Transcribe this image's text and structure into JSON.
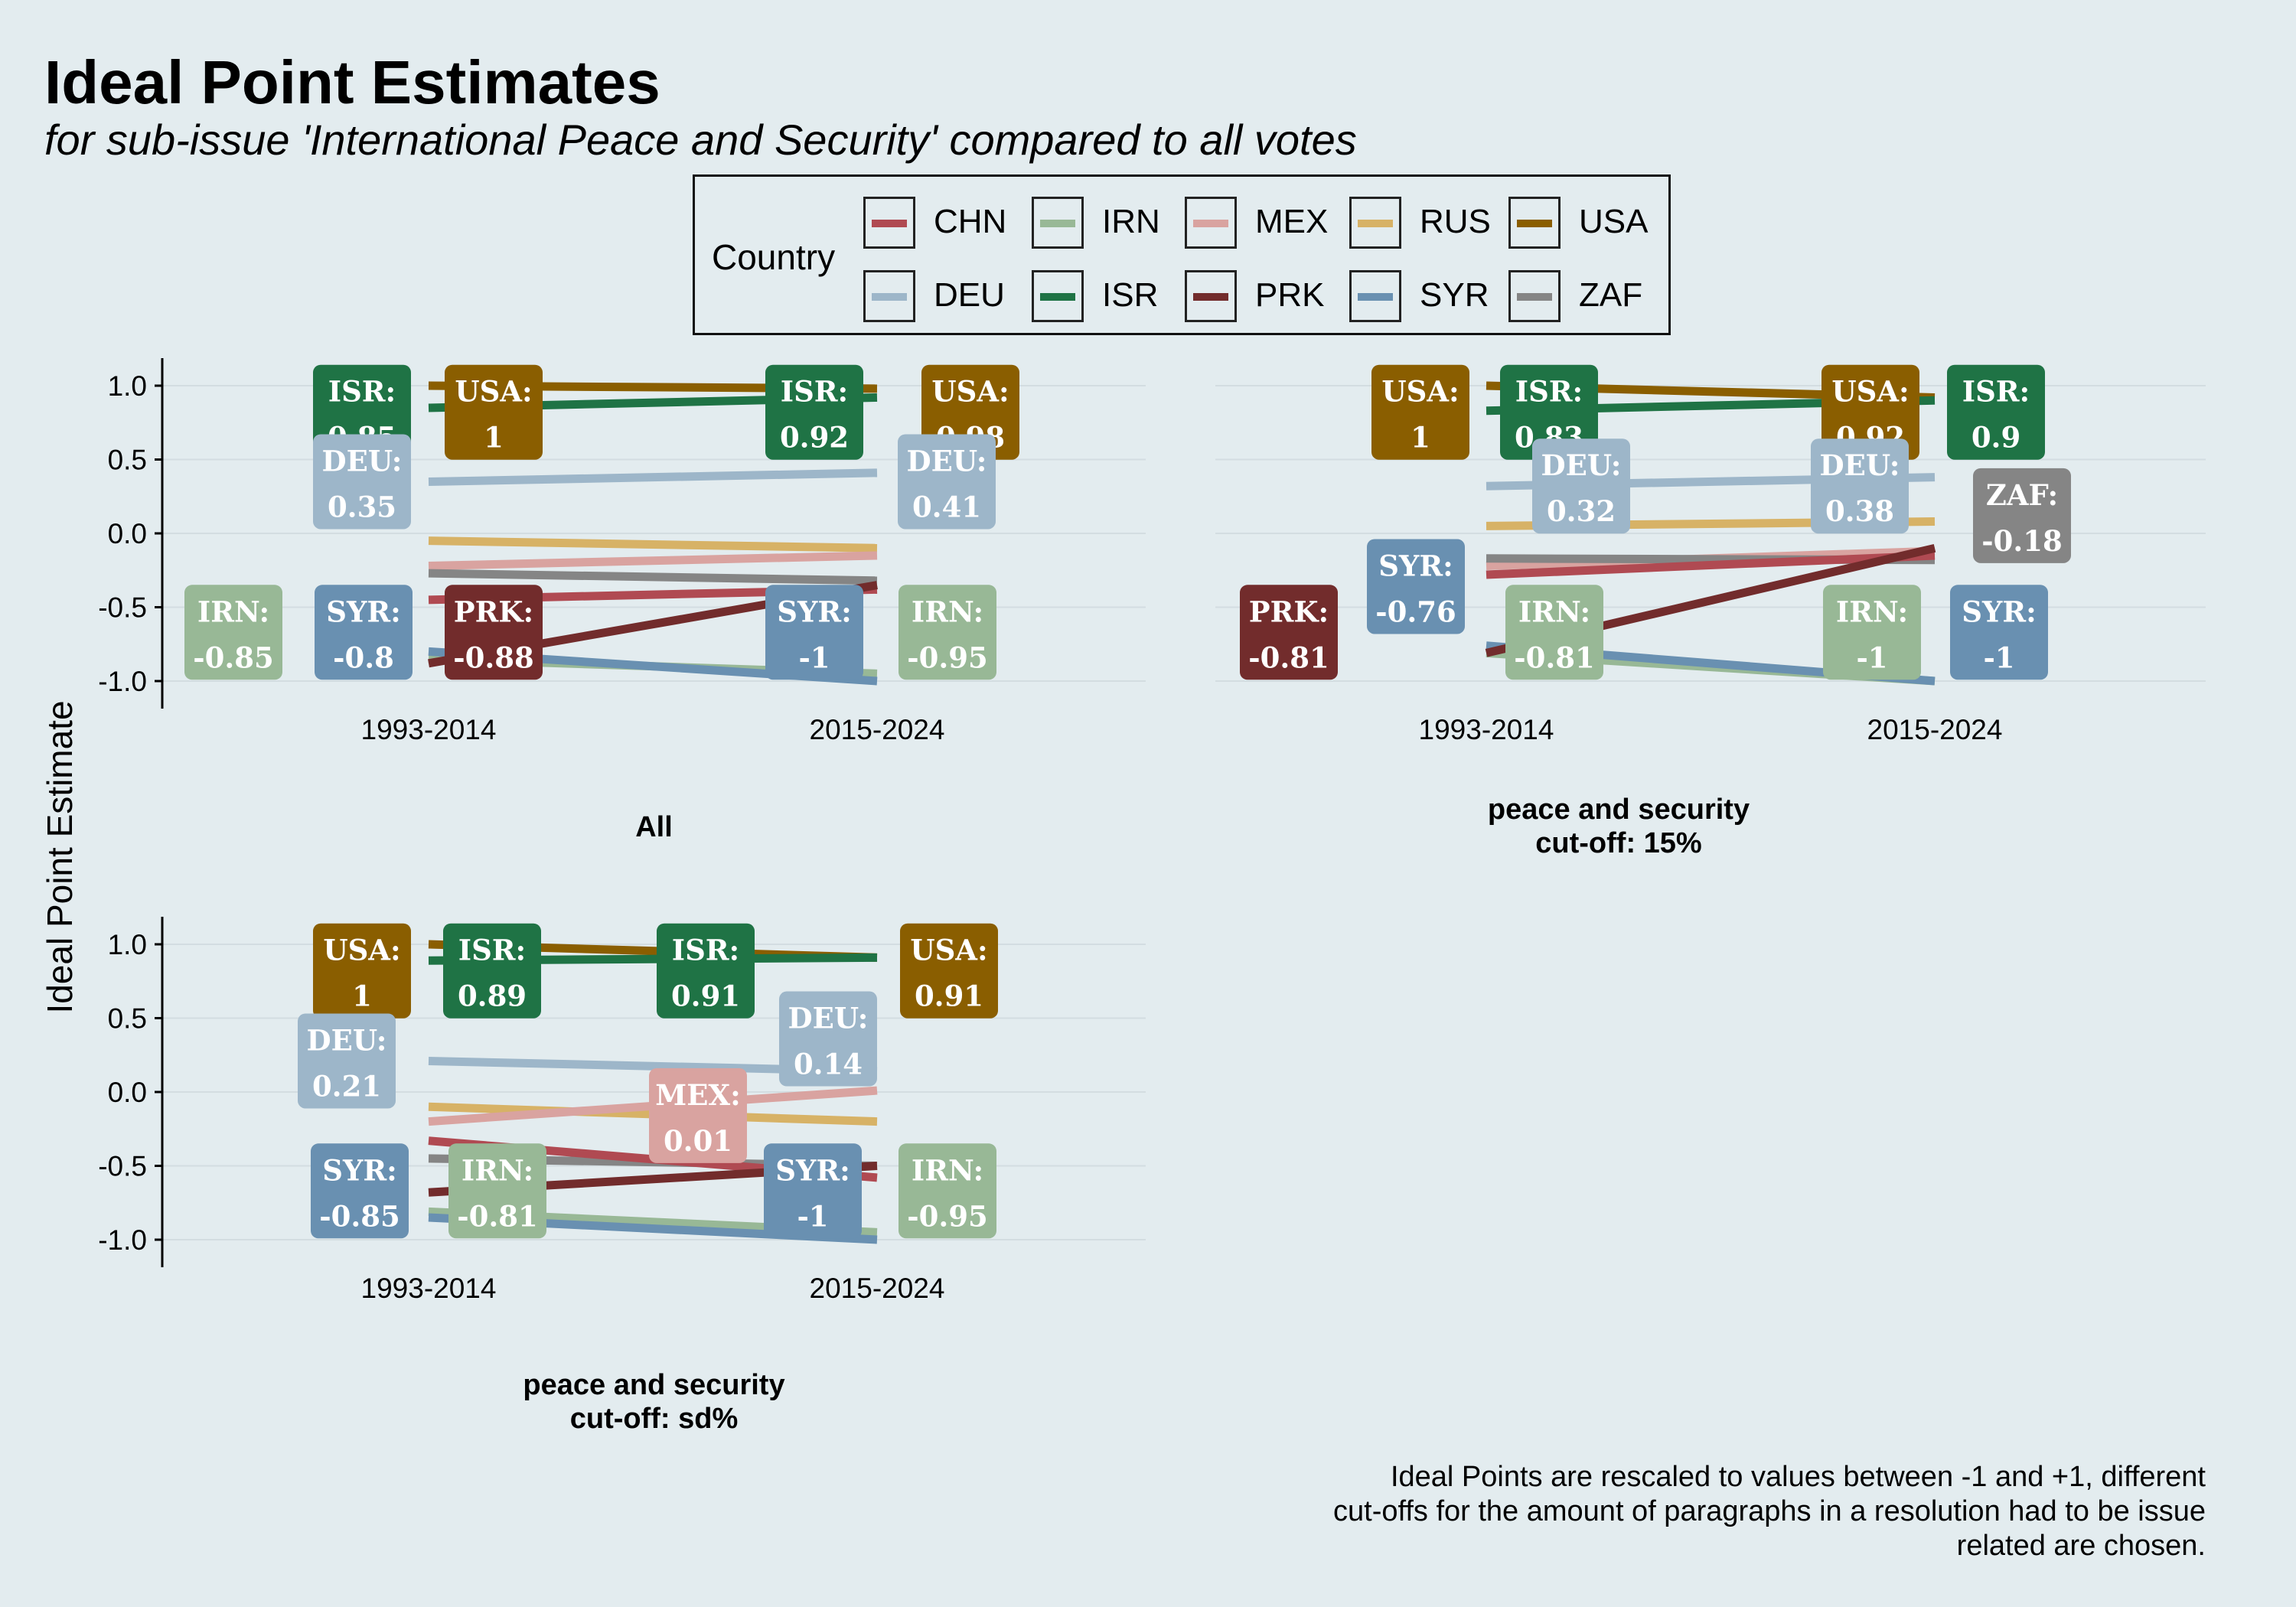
{
  "title": "Ideal Point Estimates",
  "subtitle": "for sub-issue 'International Peace and Security' compared to all votes",
  "caption_lines": [
    "Ideal Points are rescaled to values between -1 and +1, different",
    "cut-offs for the amount of paragraphs in a resolution had to be issue",
    "related are chosen."
  ],
  "legend": {
    "title": "Country",
    "items": [
      {
        "code": "CHN",
        "color": "#b04a52"
      },
      {
        "code": "IRN",
        "color": "#98b896"
      },
      {
        "code": "MEX",
        "color": "#d9a3a0"
      },
      {
        "code": "RUS",
        "color": "#d7b266"
      },
      {
        "code": "USA",
        "color": "#8a5e00"
      },
      {
        "code": "DEU",
        "color": "#9db6c9"
      },
      {
        "code": "ISR",
        "color": "#1f7345"
      },
      {
        "code": "PRK",
        "color": "#722c2c"
      },
      {
        "code": "SYR",
        "color": "#6990b1"
      },
      {
        "code": "ZAF",
        "color": "#858585"
      }
    ]
  },
  "chart_data": [
    {
      "type": "line",
      "title": "All",
      "ylabel": "Ideal Point Estimate",
      "ylim": [
        -1,
        1
      ],
      "x": [
        "1993-2014",
        "2015-2024"
      ],
      "yticks": [
        "1.0",
        "0.5",
        "0.0",
        "-0.5",
        "-1.0"
      ],
      "series": [
        {
          "name": "USA",
          "values": [
            1.0,
            0.98
          ]
        },
        {
          "name": "ISR",
          "values": [
            0.85,
            0.92
          ]
        },
        {
          "name": "DEU",
          "values": [
            0.35,
            0.41
          ]
        },
        {
          "name": "RUS",
          "values": [
            -0.05,
            -0.1
          ]
        },
        {
          "name": "MEX",
          "values": [
            -0.22,
            -0.15
          ]
        },
        {
          "name": "ZAF",
          "values": [
            -0.27,
            -0.32
          ]
        },
        {
          "name": "CHN",
          "values": [
            -0.45,
            -0.38
          ]
        },
        {
          "name": "IRN",
          "values": [
            -0.85,
            -0.95
          ]
        },
        {
          "name": "SYR",
          "values": [
            -0.8,
            -1.0
          ]
        },
        {
          "name": "PRK",
          "values": [
            -0.88,
            -0.35
          ]
        }
      ],
      "labels": [
        {
          "text": "ISR:",
          "value": "0.85",
          "country": "ISR"
        },
        {
          "text": "USA:",
          "value": "1",
          "country": "USA"
        },
        {
          "text": "DEU:",
          "value": "0.35",
          "country": "DEU"
        },
        {
          "text": "IRN:",
          "value": "-0.85",
          "country": "IRN"
        },
        {
          "text": "SYR:",
          "value": "-0.8",
          "country": "SYR"
        },
        {
          "text": "PRK:",
          "value": "-0.88",
          "country": "PRK"
        },
        {
          "text": "ISR:",
          "value": "0.92",
          "country": "ISR"
        },
        {
          "text": "USA:",
          "value": "0.98",
          "country": "USA"
        },
        {
          "text": "DEU:",
          "value": "0.41",
          "country": "DEU"
        },
        {
          "text": "SYR:",
          "value": "-1",
          "country": "SYR"
        },
        {
          "text": "IRN:",
          "value": "-0.95",
          "country": "IRN"
        }
      ]
    },
    {
      "type": "line",
      "title": "peace and security\ncut-off: 15%",
      "ylim": [
        -1,
        1
      ],
      "x": [
        "1993-2014",
        "2015-2024"
      ],
      "series": [
        {
          "name": "USA",
          "values": [
            1.0,
            0.92
          ]
        },
        {
          "name": "ISR",
          "values": [
            0.83,
            0.9
          ]
        },
        {
          "name": "DEU",
          "values": [
            0.32,
            0.38
          ]
        },
        {
          "name": "RUS",
          "values": [
            0.05,
            0.08
          ]
        },
        {
          "name": "MEX",
          "values": [
            -0.22,
            -0.12
          ]
        },
        {
          "name": "ZAF",
          "values": [
            -0.17,
            -0.18
          ]
        },
        {
          "name": "CHN",
          "values": [
            -0.28,
            -0.15
          ]
        },
        {
          "name": "IRN",
          "values": [
            -0.81,
            -1.0
          ]
        },
        {
          "name": "SYR",
          "values": [
            -0.76,
            -1.0
          ]
        },
        {
          "name": "PRK",
          "values": [
            -0.81,
            -0.1
          ]
        }
      ],
      "labels": [
        {
          "text": "USA:",
          "value": "1",
          "country": "USA"
        },
        {
          "text": "ISR:",
          "value": "0.83",
          "country": "ISR"
        },
        {
          "text": "DEU:",
          "value": "0.32",
          "country": "DEU"
        },
        {
          "text": "SYR:",
          "value": "-0.76",
          "country": "SYR"
        },
        {
          "text": "PRK:",
          "value": "-0.81",
          "country": "PRK"
        },
        {
          "text": "IRN:",
          "value": "-0.81",
          "country": "IRN"
        },
        {
          "text": "USA:",
          "value": "0.92",
          "country": "USA"
        },
        {
          "text": "ISR:",
          "value": "0.9",
          "country": "ISR"
        },
        {
          "text": "DEU:",
          "value": "0.38",
          "country": "DEU"
        },
        {
          "text": "ZAF:",
          "value": "-0.18",
          "country": "ZAF"
        },
        {
          "text": "IRN:",
          "value": "-1",
          "country": "IRN"
        },
        {
          "text": "SYR:",
          "value": "-1",
          "country": "SYR"
        }
      ]
    },
    {
      "type": "line",
      "title": "peace and security\ncut-off: sd%",
      "ylim": [
        -1,
        1
      ],
      "x": [
        "1993-2014",
        "2015-2024"
      ],
      "series": [
        {
          "name": "USA",
          "values": [
            1.0,
            0.91
          ]
        },
        {
          "name": "ISR",
          "values": [
            0.89,
            0.91
          ]
        },
        {
          "name": "DEU",
          "values": [
            0.21,
            0.14
          ]
        },
        {
          "name": "RUS",
          "values": [
            -0.1,
            -0.2
          ]
        },
        {
          "name": "MEX",
          "values": [
            -0.2,
            0.01
          ]
        },
        {
          "name": "ZAF",
          "values": [
            -0.45,
            -0.5
          ]
        },
        {
          "name": "CHN",
          "values": [
            -0.33,
            -0.58
          ]
        },
        {
          "name": "IRN",
          "values": [
            -0.81,
            -0.95
          ]
        },
        {
          "name": "SYR",
          "values": [
            -0.85,
            -1.0
          ]
        },
        {
          "name": "PRK",
          "values": [
            -0.68,
            -0.5
          ]
        }
      ],
      "labels": [
        {
          "text": "USA:",
          "value": "1",
          "country": "USA"
        },
        {
          "text": "ISR:",
          "value": "0.89",
          "country": "ISR"
        },
        {
          "text": "DEU:",
          "value": "0.21",
          "country": "DEU"
        },
        {
          "text": "SYR:",
          "value": "-0.85",
          "country": "SYR"
        },
        {
          "text": "IRN:",
          "value": "-0.81",
          "country": "IRN"
        },
        {
          "text": "ISR:",
          "value": "0.91",
          "country": "ISR"
        },
        {
          "text": "DEU:",
          "value": "0.14",
          "country": "DEU"
        },
        {
          "text": "USA:",
          "value": "0.91",
          "country": "USA"
        },
        {
          "text": "MEX:",
          "value": "0.01",
          "country": "MEX"
        },
        {
          "text": "SYR:",
          "value": "-1",
          "country": "SYR"
        },
        {
          "text": "IRN:",
          "value": "-0.95",
          "country": "IRN"
        }
      ]
    }
  ]
}
